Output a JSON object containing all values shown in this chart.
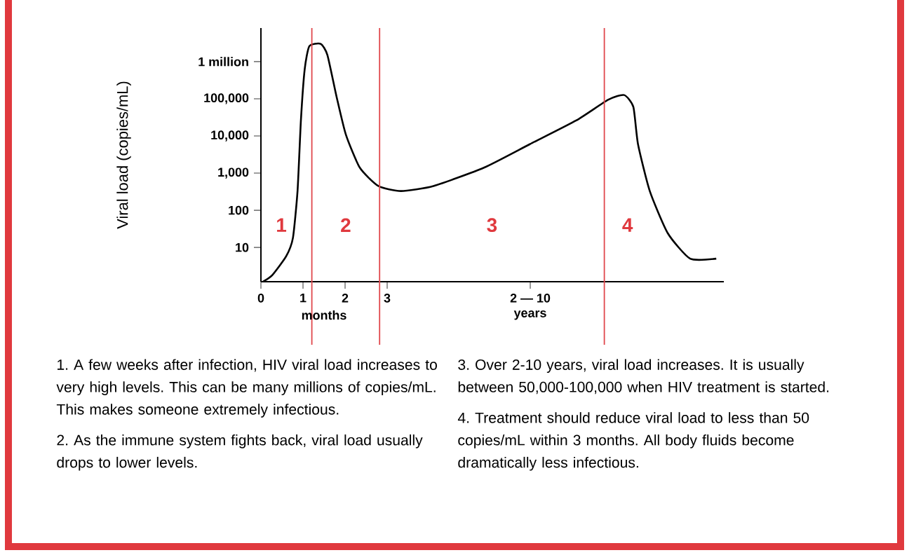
{
  "chart_data": {
    "type": "line",
    "ylabel": "Viral load (copies/mL)",
    "xlabel": "months",
    "log": "y",
    "grid": false,
    "marker": "none",
    "line_style": "solid",
    "xlim": [
      0,
      11
    ],
    "ylim": [
      1.2,
      8000000
    ],
    "xticks": [
      0,
      1,
      2,
      3,
      {
        "value": 6.4,
        "label": "2 — 10"
      }
    ],
    "yticks": [
      {
        "value": 10,
        "label": "10"
      },
      {
        "value": 100,
        "label": "100"
      },
      {
        "value": 1000,
        "label": "1,000"
      },
      {
        "value": 10000,
        "label": "10,000"
      },
      {
        "value": 100000,
        "label": "100,000"
      },
      {
        "value": 1000000,
        "label": "1 million"
      }
    ],
    "series": [
      {
        "color": "#000000",
        "x": [
          0.05,
          0.27,
          0.6,
          0.76,
          0.87,
          0.95,
          1.04,
          1.15,
          1.42,
          1.58,
          1.8,
          2.02,
          2.35,
          2.79,
          3.33,
          4.1,
          5.3,
          6.39,
          7.49,
          8.25,
          8.63,
          8.85,
          8.96,
          9.24,
          9.67,
          10.2,
          10.82
        ],
        "values": [
          1.2,
          1.8,
          5.8,
          18,
          330,
          26000,
          620000,
          2600000,
          3000000,
          1500000,
          110000,
          10700,
          1400,
          450,
          330,
          450,
          1400,
          6000,
          26000,
          94000,
          126000,
          60000,
          6000,
          330,
          24,
          5,
          5
        ]
      }
    ],
    "ref_lines": [
      {
        "axis": "x",
        "value": 1.21,
        "color": "#e0474c"
      },
      {
        "axis": "x",
        "value": 2.82,
        "color": "#e0474c"
      },
      {
        "axis": "x",
        "value": 8.16,
        "color": "#e0474c"
      }
    ],
    "annotations": [
      "years",
      "1",
      "2",
      "3",
      "4",
      "1. A few weeks after infection, HIV viral load increases to very high levels. This can be many millions of copies/mL. This makes someone extremely infectious.",
      "2. As the immune system fights back, viral load usually drops to lower levels.",
      "3. Over 2-10 years, viral load increases. It is usually between 50,000-100,000 when HIV treatment is started.",
      "4. Treatment should reduce viral load to less than 50 copies/mL within 3 months. All body fluids become dramatically less infectious."
    ]
  }
}
